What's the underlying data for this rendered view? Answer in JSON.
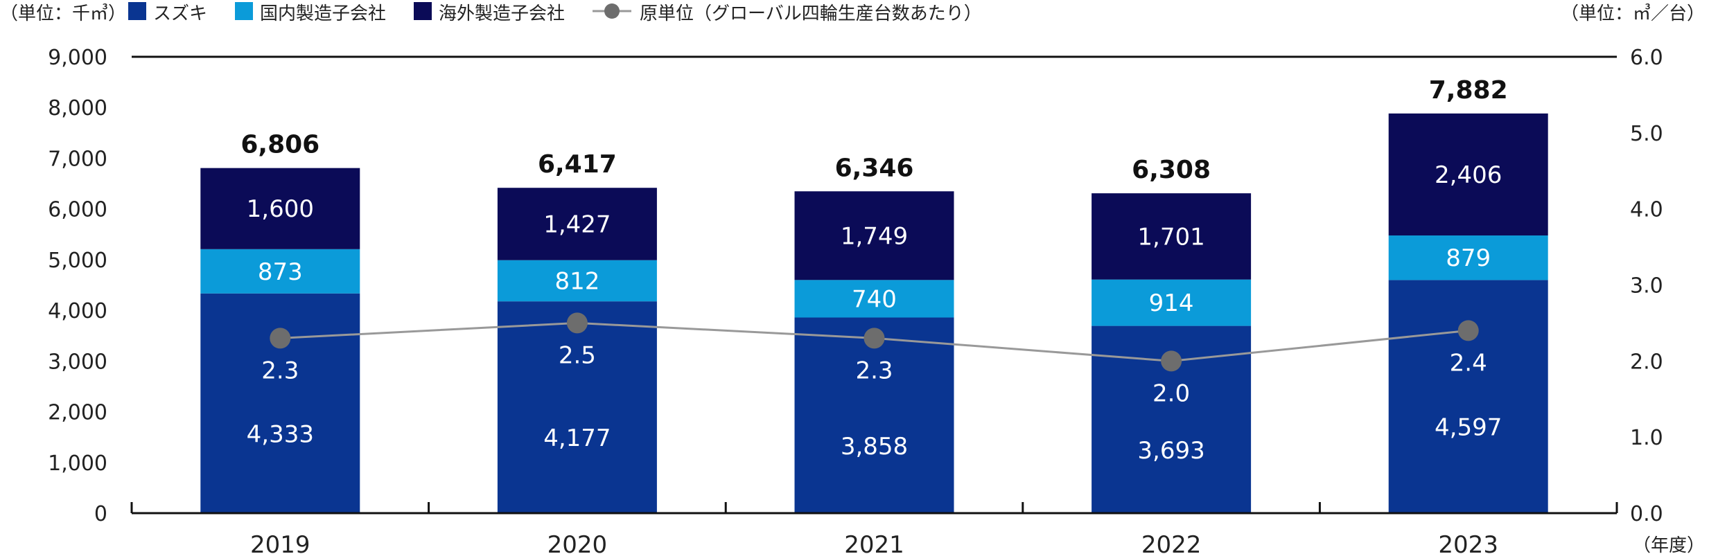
{
  "chart_data": {
    "type": "bar",
    "stacked": true,
    "categories": [
      "2019",
      "2020",
      "2021",
      "2022",
      "2023"
    ],
    "left_unit": "（単位：千㎥）",
    "right_unit": "（単位：㎥／台）",
    "x_unit": "（年度）",
    "ylim": [
      0,
      9000
    ],
    "y_ticks": [
      "0",
      "1,000",
      "2,000",
      "3,000",
      "4,000",
      "5,000",
      "6,000",
      "7,000",
      "8,000",
      "9,000"
    ],
    "y2lim": [
      0,
      6
    ],
    "y2_ticks": [
      "0.0",
      "1.0",
      "2.0",
      "3.0",
      "4.0",
      "5.0",
      "6.0"
    ],
    "series": [
      {
        "name": "スズキ",
        "color": "#0a3591",
        "values": [
          4333,
          4177,
          3858,
          3693,
          4597
        ],
        "labels": [
          "4,333",
          "4,177",
          "3,858",
          "3,693",
          "4,597"
        ]
      },
      {
        "name": "国内製造子会社",
        "color": "#0b9bd9",
        "values": [
          873,
          812,
          740,
          914,
          879
        ],
        "labels": [
          "873",
          "812",
          "740",
          "914",
          "879"
        ]
      },
      {
        "name": "海外製造子会社",
        "color": "#0b0b57",
        "values": [
          1600,
          1427,
          1749,
          1701,
          2406
        ],
        "labels": [
          "1,600",
          "1,427",
          "1,749",
          "1,701",
          "2,406"
        ]
      }
    ],
    "totals": [
      6806,
      6417,
      6346,
      6308,
      7882
    ],
    "total_labels": [
      "6,806",
      "6,417",
      "6,346",
      "6,308",
      "7,882"
    ],
    "line": {
      "name": "原単位（グローバル四輪生産台数あたり）",
      "color": "#999999",
      "marker_color": "#6d6d6d",
      "axis": "right",
      "values": [
        2.3,
        2.5,
        2.3,
        2.0,
        2.4
      ],
      "labels": [
        "2.3",
        "2.5",
        "2.3",
        "2.0",
        "2.4"
      ]
    }
  }
}
